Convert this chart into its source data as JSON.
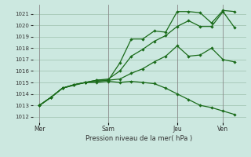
{
  "title": "",
  "xlabel": "Pression niveau de la mer( hPa )",
  "ylim": [
    1011.5,
    1021.8
  ],
  "yticks": [
    1012,
    1013,
    1014,
    1015,
    1016,
    1017,
    1018,
    1019,
    1020,
    1021
  ],
  "bg_color": "#cce8e0",
  "grid_color": "#aaccbb",
  "line_color": "#1a6b1a",
  "vline_color": "#888888",
  "day_labels": [
    "Mer",
    "Sam",
    "Jeu",
    "Ven"
  ],
  "day_positions": [
    0,
    30,
    60,
    80
  ],
  "xlim": [
    -3,
    90
  ],
  "line1": {
    "x": [
      0,
      5,
      10,
      15,
      20,
      25,
      30,
      35,
      40,
      45,
      50,
      55,
      60,
      65,
      70,
      75,
      80,
      85
    ],
    "y": [
      1013.0,
      1013.7,
      1014.5,
      1014.8,
      1015.0,
      1015.2,
      1015.2,
      1016.7,
      1018.8,
      1018.8,
      1019.5,
      1019.4,
      1021.2,
      1021.2,
      1021.1,
      1020.2,
      1021.3,
      1021.2
    ]
  },
  "line2": {
    "x": [
      0,
      5,
      10,
      15,
      20,
      25,
      30,
      35,
      40,
      45,
      50,
      55,
      60,
      65,
      70,
      75,
      80,
      85
    ],
    "y": [
      1013.0,
      1013.7,
      1014.5,
      1014.8,
      1015.0,
      1015.2,
      1015.3,
      1016.0,
      1017.3,
      1017.9,
      1018.6,
      1019.1,
      1019.9,
      1020.4,
      1019.9,
      1019.9,
      1021.2,
      1019.8
    ]
  },
  "line3": {
    "x": [
      0,
      5,
      10,
      20,
      30,
      35,
      40,
      45,
      50,
      55,
      60,
      65,
      70,
      75,
      80,
      85
    ],
    "y": [
      1013.0,
      1013.7,
      1014.5,
      1015.0,
      1015.2,
      1015.3,
      1015.8,
      1016.2,
      1016.8,
      1017.3,
      1018.2,
      1017.3,
      1017.4,
      1018.0,
      1017.0,
      1016.8
    ]
  },
  "line4": {
    "x": [
      0,
      5,
      10,
      15,
      20,
      25,
      30,
      35,
      40,
      45,
      50,
      55,
      60,
      65,
      70,
      75,
      80,
      85
    ],
    "y": [
      1013.0,
      1013.7,
      1014.5,
      1014.8,
      1015.0,
      1015.0,
      1015.1,
      1015.0,
      1015.1,
      1015.0,
      1014.9,
      1014.5,
      1014.0,
      1013.5,
      1013.0,
      1012.8,
      1012.5,
      1012.2
    ]
  }
}
